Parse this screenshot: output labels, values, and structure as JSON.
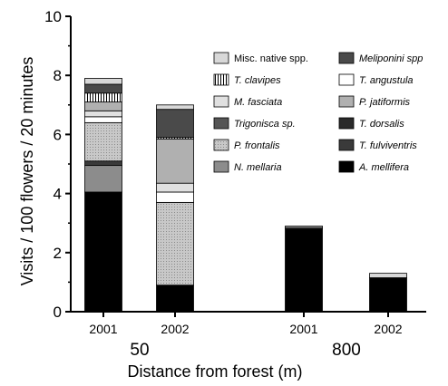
{
  "chart_data": {
    "type": "bar",
    "stacked": true,
    "ylabel": "Visits / 100 flowers / 20 minutes",
    "xlabel": "Distance from forest (m)",
    "ylim": [
      0,
      10
    ],
    "yticks": [
      0,
      2,
      4,
      6,
      8,
      10
    ],
    "groups": [
      {
        "label": "50",
        "bars": [
          "2001",
          "2002"
        ]
      },
      {
        "label": "800",
        "bars": [
          "2001",
          "2002"
        ]
      }
    ],
    "categories": [
      "2001",
      "2002",
      "2001",
      "2002"
    ],
    "series": [
      {
        "name": "A. mellifera",
        "italic": true,
        "color": "#000000",
        "pattern": "solid",
        "values": [
          4.05,
          0.9,
          2.8,
          1.15
        ]
      },
      {
        "name": "N. mellaria",
        "italic": true,
        "color": "#8c8c8c",
        "pattern": "solid",
        "values": [
          0.9,
          0.0,
          0.0,
          0.0
        ]
      },
      {
        "name": "T. fulviventris",
        "italic": true,
        "color": "#3a3a3a",
        "pattern": "solid",
        "values": [
          0.15,
          0.0,
          0.0,
          0.0
        ]
      },
      {
        "name": "P. frontalis",
        "italic": true,
        "color": "#c8c8c8",
        "pattern": "dotted",
        "values": [
          1.3,
          2.8,
          0.0,
          0.0
        ]
      },
      {
        "name": "T. dorsalis",
        "italic": true,
        "color": "#2a2a2a",
        "pattern": "solid",
        "values": [
          0.0,
          0.0,
          0.0,
          0.0
        ]
      },
      {
        "name": "T. angustula",
        "italic": true,
        "color": "#ffffff",
        "pattern": "solid",
        "values": [
          0.2,
          0.35,
          0.0,
          0.0
        ]
      },
      {
        "name": "Trigonisca sp.",
        "italic": true,
        "color": "#555555",
        "pattern": "solid",
        "values": [
          0.0,
          0.0,
          0.0,
          0.0
        ]
      },
      {
        "name": "M. fasciata",
        "italic": true,
        "color": "#e0e0e0",
        "pattern": "solid",
        "values": [
          0.2,
          0.3,
          0.0,
          0.0
        ]
      },
      {
        "name": "P. jatiformis",
        "italic": true,
        "color": "#b0b0b0",
        "pattern": "solid",
        "values": [
          0.3,
          1.5,
          0.0,
          0.0
        ]
      },
      {
        "name": "T. clavipes",
        "italic": true,
        "color": "#ffffff",
        "pattern": "vstripes",
        "values": [
          0.3,
          0.05,
          0.0,
          0.0
        ]
      },
      {
        "name": "Meliponini spp.",
        "italic": true,
        "color": "#4a4a4a",
        "pattern": "solid",
        "values": [
          0.3,
          0.95,
          0.05,
          0.0
        ]
      },
      {
        "name": "Misc. native spp.",
        "italic": false,
        "color": "#d8d8d8",
        "pattern": "solid",
        "values": [
          0.2,
          0.15,
          0.05,
          0.15
        ]
      }
    ],
    "legend": {
      "placement": "top-right",
      "left_column": [
        "Misc. native spp.",
        "T. clavipes",
        "M. fasciata",
        "Trigonisca sp.",
        "P. frontalis",
        "N. mellaria"
      ],
      "right_column": [
        "Meliponini spp.",
        "T. angustula",
        "P. jatiformis",
        "T. dorsalis",
        "T. fulviventris",
        "A. mellifera"
      ],
      "right_column_display": [
        "Meliponini spp",
        "T. angustula",
        "P. jatiformis",
        "T. dorsalis",
        "T. fulviventris",
        "A. mellifera"
      ]
    },
    "grid": false
  }
}
